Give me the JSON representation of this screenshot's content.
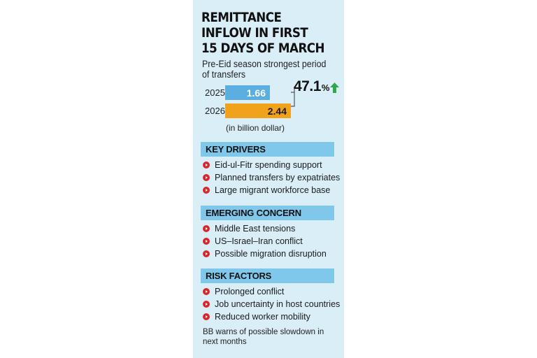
{
  "title": "REMITTANCE INFLOW IN FIRST 15 DAYS OF MARCH",
  "subtitle": "Pre-Eid season strongest period of transfers",
  "chart_data": {
    "type": "bar",
    "orientation": "horizontal",
    "categories": [
      "2025",
      "2026"
    ],
    "values": [
      1.66,
      2.44
    ],
    "value_labels": [
      "1.66",
      "2.44"
    ],
    "unit_note": "(in billion dollar)",
    "growth": "47.1",
    "growth_symbol": "%",
    "colors": [
      "#5aaee0",
      "#f0a21a"
    ],
    "growth_arrow_color": "#2ea84a"
  },
  "sections": [
    {
      "heading": "KEY DRIVERS",
      "items": [
        "Eid-ul-Fitr spending support",
        "Planned transfers by expatriates",
        "Large migrant workforce base"
      ]
    },
    {
      "heading": "EMERGING CONCERN",
      "items": [
        "Middle East tensions",
        "US–Israel–Iran conflict",
        "Possible migration disruption"
      ]
    },
    {
      "heading": "RISK FACTORS",
      "items": [
        "Prolonged conflict",
        "Job uncertainty in host countries",
        "Reduced worker mobility"
      ]
    }
  ],
  "footer": "BB warns of possible slowdown in next months",
  "colors": {
    "panel_bg": "#daeef8",
    "section_header_bg": "#7fc8ec",
    "bullet": "#d9262b"
  }
}
